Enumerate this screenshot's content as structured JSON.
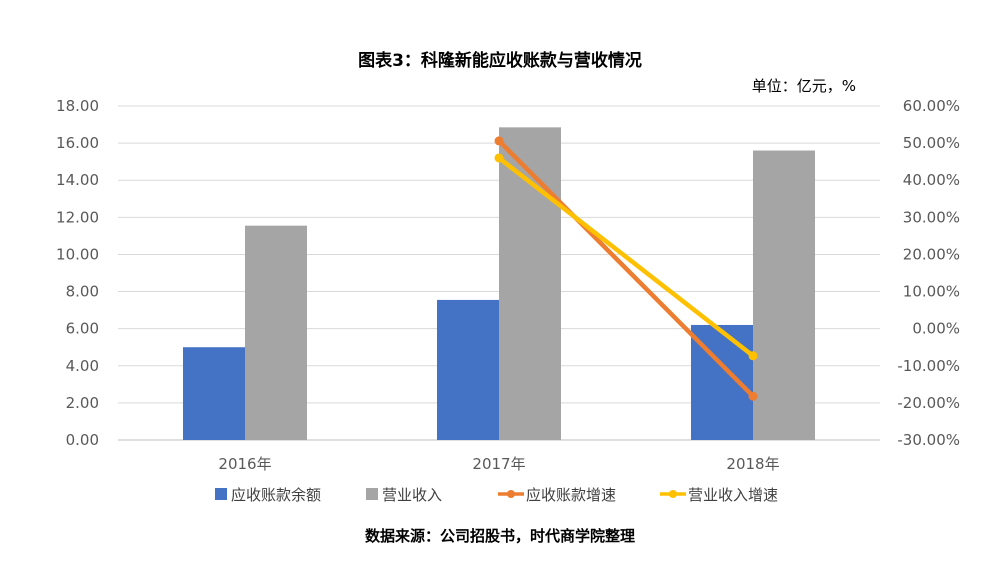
{
  "chart_data": {
    "type": "bar",
    "title": "图表3：科隆新能应收账款与营收情况",
    "unit_label": "单位：亿元，%",
    "source": "数据来源：公司招股书，时代商学院整理",
    "categories": [
      "2016年",
      "2017年",
      "2018年"
    ],
    "y_left": {
      "ticks": [
        "0.00",
        "2.00",
        "4.00",
        "6.00",
        "8.00",
        "10.00",
        "12.00",
        "14.00",
        "16.00",
        "18.00"
      ],
      "range": [
        0,
        18
      ]
    },
    "y_right": {
      "ticks": [
        "-30.00%",
        "-20.00%",
        "-10.00%",
        "0.00%",
        "10.00%",
        "20.00%",
        "30.00%",
        "40.00%",
        "50.00%",
        "60.00%"
      ],
      "range": [
        -30,
        60
      ]
    },
    "grid": true,
    "legend_position": "bottom",
    "series": [
      {
        "name": "应收账款余额",
        "kind": "bar",
        "axis": "left",
        "color": "#4472C4",
        "values": [
          5.0,
          7.55,
          6.2
        ]
      },
      {
        "name": "营业收入",
        "kind": "bar",
        "axis": "left",
        "color": "#A5A5A5",
        "values": [
          11.55,
          16.85,
          15.6
        ]
      },
      {
        "name": "应收账款增速",
        "kind": "line",
        "axis": "right",
        "color": "#ED7D31",
        "values": [
          null,
          50.6,
          -18.2
        ]
      },
      {
        "name": "营业收入增速",
        "kind": "line",
        "axis": "right",
        "color": "#FFC000",
        "values": [
          null,
          46.0,
          -7.3
        ]
      }
    ]
  }
}
